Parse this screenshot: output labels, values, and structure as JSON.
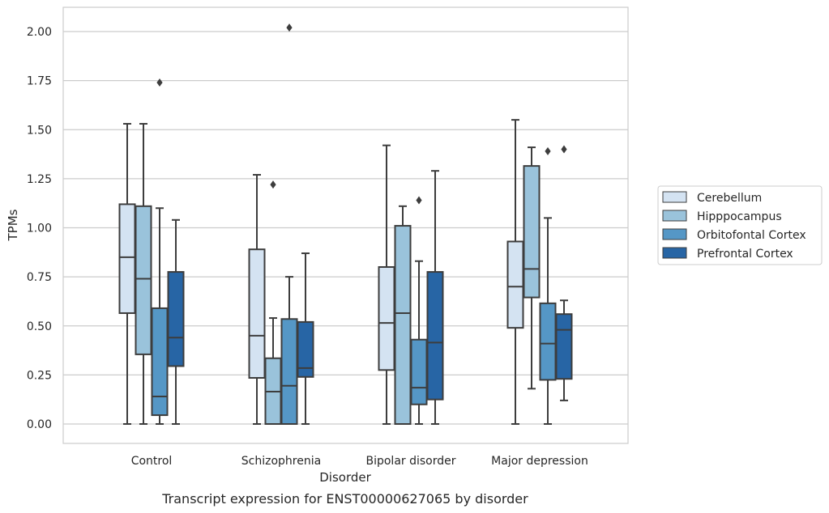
{
  "caption": "Transcript expression for ENST00000627065 by disorder",
  "chart_data": {
    "type": "box",
    "title": "",
    "xlabel": "Disorder",
    "ylabel": "TPMs",
    "ylim": [
      -0.1,
      2.12
    ],
    "yticks": [
      "0.00",
      "0.25",
      "0.50",
      "0.75",
      "1.00",
      "1.25",
      "1.50",
      "1.75",
      "2.00"
    ],
    "grid": "horizontal",
    "legend_position": "right",
    "categories": [
      "Control",
      "Schizophrenia",
      "Bipolar disorder",
      "Major depression"
    ],
    "series": [
      {
        "name": "Cerebellum",
        "color": "#d4e3f2",
        "boxes": [
          {
            "whislo": 0.0,
            "q1": 0.565,
            "med": 0.85,
            "q3": 1.12,
            "whishi": 1.53,
            "fliers": []
          },
          {
            "whislo": 0.0,
            "q1": 0.235,
            "med": 0.45,
            "q3": 0.89,
            "whishi": 1.27,
            "fliers": []
          },
          {
            "whislo": 0.0,
            "q1": 0.275,
            "med": 0.515,
            "q3": 0.8,
            "whishi": 1.42,
            "fliers": []
          },
          {
            "whislo": 0.0,
            "q1": 0.49,
            "med": 0.7,
            "q3": 0.93,
            "whishi": 1.55,
            "fliers": []
          }
        ]
      },
      {
        "name": "Hipppocampus",
        "color": "#9ac3db",
        "boxes": [
          {
            "whislo": 0.0,
            "q1": 0.355,
            "med": 0.74,
            "q3": 1.11,
            "whishi": 1.53,
            "fliers": []
          },
          {
            "whislo": 0.0,
            "q1": 0.0,
            "med": 0.165,
            "q3": 0.335,
            "whishi": 0.54,
            "fliers": [
              1.22
            ]
          },
          {
            "whislo": 0.0,
            "q1": 0.0,
            "med": 0.565,
            "q3": 1.01,
            "whishi": 1.11,
            "fliers": []
          },
          {
            "whislo": 0.18,
            "q1": 0.645,
            "med": 0.79,
            "q3": 1.315,
            "whishi": 1.41,
            "fliers": []
          }
        ]
      },
      {
        "name": "Orbitofontal Cortex",
        "color": "#5597c6",
        "boxes": [
          {
            "whislo": 0.0,
            "q1": 0.045,
            "med": 0.14,
            "q3": 0.59,
            "whishi": 1.1,
            "fliers": [
              1.74
            ]
          },
          {
            "whislo": 0.0,
            "q1": 0.0,
            "med": 0.195,
            "q3": 0.535,
            "whishi": 0.75,
            "fliers": [
              2.02
            ]
          },
          {
            "whislo": 0.0,
            "q1": 0.1,
            "med": 0.185,
            "q3": 0.43,
            "whishi": 0.83,
            "fliers": [
              1.14
            ]
          },
          {
            "whislo": 0.0,
            "q1": 0.225,
            "med": 0.41,
            "q3": 0.615,
            "whishi": 1.05,
            "fliers": [
              1.39
            ]
          }
        ]
      },
      {
        "name": "Prefrontal Cortex",
        "color": "#2765a5",
        "boxes": [
          {
            "whislo": 0.0,
            "q1": 0.295,
            "med": 0.44,
            "q3": 0.775,
            "whishi": 1.04,
            "fliers": []
          },
          {
            "whislo": 0.0,
            "q1": 0.24,
            "med": 0.285,
            "q3": 0.52,
            "whishi": 0.87,
            "fliers": []
          },
          {
            "whislo": 0.0,
            "q1": 0.125,
            "med": 0.415,
            "q3": 0.775,
            "whishi": 1.29,
            "fliers": []
          },
          {
            "whislo": 0.12,
            "q1": 0.23,
            "med": 0.48,
            "q3": 0.56,
            "whishi": 0.63,
            "fliers": [
              1.4
            ]
          }
        ]
      }
    ]
  },
  "colors": {
    "grid": "#cccccc",
    "frame": "#cccccc",
    "box_edge": "#3d3d3d",
    "text": "#262626",
    "legend_border": "#cccccc"
  }
}
